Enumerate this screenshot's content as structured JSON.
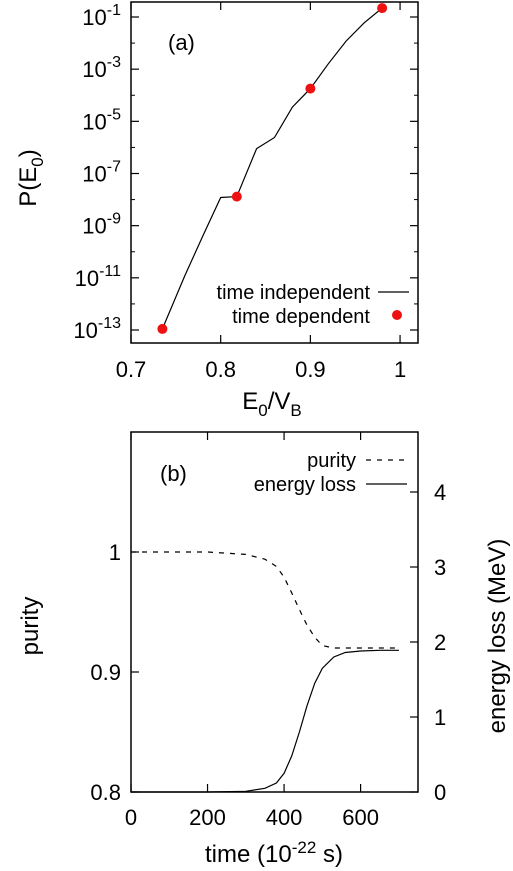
{
  "chart_data": [
    {
      "panel_label": "(a)",
      "type": "line+scatter",
      "xlabel": "E0/VB",
      "xlabel_parts": {
        "base": "E",
        "sub1": "0",
        "slash": "/V",
        "sub2": "B"
      },
      "ylabel": "P(E0)",
      "ylabel_parts": {
        "pre": "P(E",
        "sub": "0",
        "post": ")"
      },
      "xlim": [
        0.7,
        1.02
      ],
      "y_scale": "log",
      "ylim": [
        1e-13,
        0.1
      ],
      "x_ticks": [
        {
          "value": 0.7,
          "label": "0.7"
        },
        {
          "value": 0.8,
          "label": "0.8"
        },
        {
          "value": 0.9,
          "label": "0.9"
        },
        {
          "value": 1.0,
          "label": "1"
        }
      ],
      "y_ticks": [
        {
          "value": 0.1,
          "base": "10",
          "exp": "-1"
        },
        {
          "value": 0.001,
          "base": "10",
          "exp": "-3"
        },
        {
          "value": 1e-05,
          "base": "10",
          "exp": "-5"
        },
        {
          "value": 1e-07,
          "base": "10",
          "exp": "-7"
        },
        {
          "value": 1e-09,
          "base": "10",
          "exp": "-9"
        },
        {
          "value": 1e-11,
          "base": "10",
          "exp": "-11"
        },
        {
          "value": 1e-13,
          "base": "10",
          "exp": "-13"
        }
      ],
      "grid": false,
      "legend_position": "bottom-right",
      "series": [
        {
          "name": "time independent",
          "style": "solid-line",
          "color": "#000000",
          "x": [
            0.735,
            0.76,
            0.78,
            0.8,
            0.818,
            0.84,
            0.86,
            0.88,
            0.9,
            0.92,
            0.94,
            0.96,
            0.98
          ],
          "y": [
            1.1e-13,
            1.2e-11,
            4e-10,
            1.2e-08,
            1.3e-08,
            9e-07,
            2.4e-06,
            3.5e-05,
            0.00018,
            0.0016,
            0.012,
            0.06,
            0.22
          ]
        },
        {
          "name": "time dependent",
          "style": "markers",
          "color": "#ee1111",
          "x": [
            0.735,
            0.818,
            0.9,
            0.98
          ],
          "y": [
            1.1e-13,
            1.3e-08,
            0.00018,
            0.22
          ]
        }
      ]
    },
    {
      "panel_label": "(b)",
      "type": "line",
      "xlabel": "time (10-22 s)",
      "xlabel_parts": {
        "pre": "time (10",
        "sup": "-22",
        "post": " s)"
      },
      "ylabel_left": "purity",
      "ylabel_right": "energy loss (MeV)",
      "xlim": [
        0,
        750
      ],
      "ylim_left": [
        0.8,
        1.1
      ],
      "ylim_right": [
        0,
        4.8
      ],
      "x_ticks": [
        {
          "value": 0,
          "label": "0"
        },
        {
          "value": 200,
          "label": "200"
        },
        {
          "value": 400,
          "label": "400"
        },
        {
          "value": 600,
          "label": "600"
        }
      ],
      "y_ticks_left": [
        {
          "value": 0.8,
          "label": "0.8"
        },
        {
          "value": 0.9,
          "label": "0.9"
        },
        {
          "value": 1.0,
          "label": "1"
        }
      ],
      "y_ticks_right": [
        {
          "value": 0,
          "label": "0"
        },
        {
          "value": 1,
          "label": "1"
        },
        {
          "value": 2,
          "label": "2"
        },
        {
          "value": 3,
          "label": "3"
        },
        {
          "value": 4,
          "label": "4"
        }
      ],
      "grid": false,
      "legend_position": "top-right",
      "series": [
        {
          "name": "purity",
          "style": "dashed-line",
          "axis": "left",
          "color": "#000000",
          "x": [
            0,
            100,
            200,
            300,
            350,
            380,
            400,
            420,
            440,
            460,
            480,
            500,
            530,
            560,
            600,
            650,
            700
          ],
          "y": [
            1.0,
            1.0,
            1.0,
            0.998,
            0.994,
            0.988,
            0.979,
            0.966,
            0.952,
            0.939,
            0.929,
            0.922,
            0.92,
            0.92,
            0.92,
            0.92,
            0.92
          ]
        },
        {
          "name": "energy loss",
          "style": "solid-line",
          "axis": "right",
          "color": "#000000",
          "x": [
            0,
            100,
            200,
            300,
            350,
            380,
            400,
            420,
            440,
            460,
            480,
            500,
            530,
            560,
            600,
            650,
            700
          ],
          "y": [
            0.0,
            0.0,
            0.0,
            0.01,
            0.05,
            0.12,
            0.25,
            0.48,
            0.8,
            1.15,
            1.45,
            1.65,
            1.8,
            1.86,
            1.88,
            1.89,
            1.89
          ]
        }
      ]
    }
  ]
}
